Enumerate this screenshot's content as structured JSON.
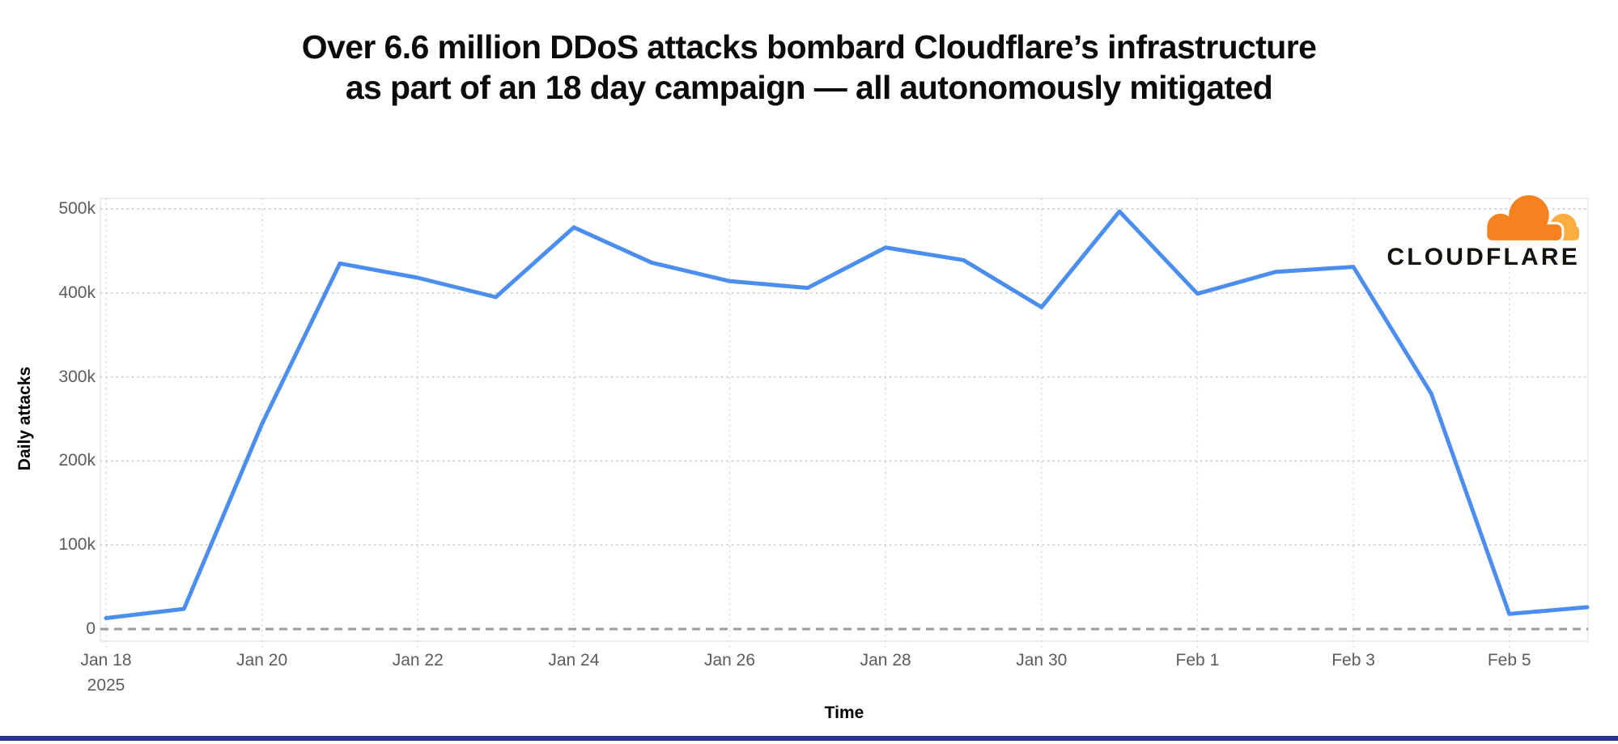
{
  "page": {
    "title_line1": "Over 6.6 million DDoS attacks bombard Cloudflare’s infrastructure",
    "title_line2": "as part of an 18 day campaign — all autonomously mitigated"
  },
  "branding": {
    "logo_text": "CLOUDFLARE",
    "logo_orange": "#F6821F",
    "logo_light_orange": "#FBAD41"
  },
  "chart_data": {
    "type": "line",
    "title": "Over 6.6 million DDoS attacks bombard Cloudflare’s infrastructure as part of an 18 day campaign — all autonomously mitigated",
    "xlabel": "Time",
    "ylabel": "Daily attacks",
    "x": [
      "Jan 18 2025",
      "Jan 19",
      "Jan 20",
      "Jan 21",
      "Jan 22",
      "Jan 23",
      "Jan 24",
      "Jan 25",
      "Jan 26",
      "Jan 27",
      "Jan 28",
      "Jan 29",
      "Jan 30",
      "Jan 31",
      "Feb 1",
      "Feb 2",
      "Feb 3",
      "Feb 4",
      "Feb 5",
      "Feb 6"
    ],
    "values": [
      13000,
      24000,
      244000,
      435000,
      418000,
      395000,
      478000,
      436000,
      414000,
      406000,
      454000,
      439000,
      383000,
      497000,
      399000,
      425000,
      431000,
      280000,
      18000,
      26000
    ],
    "x_axis_ticks": [
      {
        "label": "Jan 18",
        "sub": "2025",
        "index": 0
      },
      {
        "label": "Jan 20",
        "index": 2
      },
      {
        "label": "Jan 22",
        "index": 4
      },
      {
        "label": "Jan 24",
        "index": 6
      },
      {
        "label": "Jan 26",
        "index": 8
      },
      {
        "label": "Jan 28",
        "index": 10
      },
      {
        "label": "Jan 30",
        "index": 12
      },
      {
        "label": "Feb 1",
        "index": 14
      },
      {
        "label": "Feb 3",
        "index": 16
      },
      {
        "label": "Feb 5",
        "index": 18
      }
    ],
    "y_axis_ticks": [
      {
        "label": "0",
        "value": 0
      },
      {
        "label": "100k",
        "value": 100000
      },
      {
        "label": "200k",
        "value": 200000
      },
      {
        "label": "300k",
        "value": 300000
      },
      {
        "label": "400k",
        "value": 400000
      },
      {
        "label": "500k",
        "value": 500000
      }
    ],
    "ylim": [
      0,
      520000
    ],
    "grid": "dotted, light gray, zero baseline dashed dark gray",
    "legend": "none",
    "line_color": "#4b8ef0"
  },
  "footer": {
    "accent_bar_color": "#2a3192"
  }
}
